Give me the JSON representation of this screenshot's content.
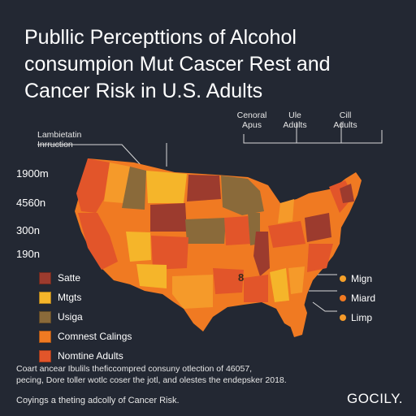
{
  "title": {
    "line1": "Publlic Percepttions of Alcohol",
    "line2": "consumpion Mut Cascer Rest and",
    "line3": "Cancer Risk in U.S. Adults"
  },
  "column_headers": [
    {
      "line1": "Cenoral",
      "line2": "Apus"
    },
    {
      "line1": "Ule",
      "line2": "Adults"
    },
    {
      "line1": "Cill",
      "line2": "Adults"
    }
  ],
  "y_axis_title": {
    "line1": "Lambietatin",
    "line2": "Inrruction"
  },
  "y_ticks": [
    "1900m",
    "4560n",
    "300n",
    "190n"
  ],
  "map_label": "8",
  "legend_left": [
    {
      "label": "Satte",
      "color": "#9c3b2e"
    },
    {
      "label": "Mtgts",
      "color": "#f5b52a"
    },
    {
      "label": "Usiga",
      "color": "#8a6a3a"
    },
    {
      "label": "Comnest Calings",
      "color": "#f07a22"
    },
    {
      "label": "Nomtine Adults",
      "color": "#e2552a"
    }
  ],
  "legend_right": [
    {
      "label": "Mign",
      "color": "#f5a02a"
    },
    {
      "label": "Miard",
      "color": "#f07a22"
    },
    {
      "label": "Limp",
      "color": "#f59a2a"
    }
  ],
  "footnote": {
    "line1": "Coart ancear Ibulils theficcompred consuny otlection of 46057,",
    "line2": "pecing, Dore toller wotlc coser the jotl, and olestes the endepsker 2018."
  },
  "bottom_note": "Coyings a theting adcolly of Cancer Risk.",
  "brand": "GOCILY.",
  "colors": {
    "background": "#232833",
    "dark_red": "#9c3b2e",
    "brown": "#8a6a3a",
    "orange": "#f07a22",
    "light_orange": "#f59a2a",
    "yellow": "#f5b52a",
    "red_orange": "#e2552a"
  }
}
